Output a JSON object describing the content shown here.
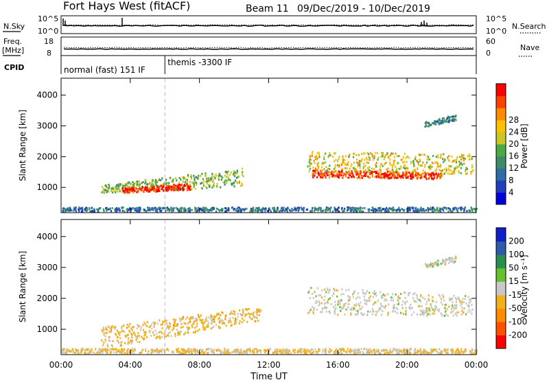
{
  "header": {
    "station": "Fort Hays West (fitACF)",
    "beam": "Beam 11",
    "date_range": "09/Dec/2019 - 10/Dec/2019"
  },
  "panel_labels": {
    "nsky": "N.Sky",
    "nsearch": "N.Search",
    "freq_line1": "Freq.",
    "freq_line2": "[MHz]",
    "nave": "Nave",
    "cpid": "CPID"
  },
  "noise_axis": {
    "top": "10^5",
    "bottom": "10^0"
  },
  "freq_axis": {
    "left_top": "18",
    "left_bottom": "8",
    "right_top": "60",
    "right_bottom": "0"
  },
  "cpid_modes": [
    {
      "label": "normal (fast) 151 IF",
      "start_hour": 0
    },
    {
      "label": "themis -3300 IF",
      "start_hour": 6
    }
  ],
  "x_axis": {
    "title": "Time UT",
    "ticks": [
      "00:00",
      "04:00",
      "08:00",
      "12:00",
      "16:00",
      "20:00",
      "00:00"
    ]
  },
  "y_axis": {
    "title": "Slant Range [km]",
    "ticks": [
      "1000",
      "2000",
      "3000",
      "4000"
    ]
  },
  "power_bar": {
    "title": "Power [dB]",
    "ticks": [
      "4",
      "8",
      "12",
      "16",
      "20",
      "24",
      "28"
    ],
    "colors": [
      "#0000dd",
      "#1f3fbf",
      "#2e6ea6",
      "#3c8c6a",
      "#4aaa45",
      "#c9c628",
      "#ffc000",
      "#ff8c00",
      "#ff4000",
      "#ff0000"
    ]
  },
  "velocity_bar": {
    "title": "Velocity [m s⁻¹]",
    "ticks": [
      "200",
      "100",
      "50",
      "15",
      "-15",
      "-50",
      "-100",
      "-200"
    ],
    "colors": [
      "#1020c8",
      "#2e5aa8",
      "#2a8e50",
      "#66c030",
      "#c8c8c8",
      "#f0b020",
      "#ff8c00",
      "#ff5000",
      "#ff0000"
    ]
  },
  "chart_data": [
    {
      "type": "heatmap",
      "title": "Power [dB]",
      "xlabel": "Time UT",
      "ylabel": "Slant Range [km]",
      "xlim": [
        0,
        24
      ],
      "ylim": [
        180,
        4550
      ],
      "colorbar_range": [
        0,
        30
      ],
      "bands": [
        {
          "t_start": 2.3,
          "t_end": 10.5,
          "range_low_start": 850,
          "range_low_end": 1050,
          "range_high_start": 1100,
          "range_high_end": 1650,
          "power": 14
        },
        {
          "t_start": 3.5,
          "t_end": 7.5,
          "range_low_start": 850,
          "range_low_end": 950,
          "range_high_start": 1000,
          "range_high_end": 1150,
          "power": 27
        },
        {
          "t_start": 14.2,
          "t_end": 23.8,
          "range_low_start": 1500,
          "range_low_end": 1450,
          "range_high_start": 2200,
          "range_high_end": 2100,
          "power": 18
        },
        {
          "t_start": 14.5,
          "t_end": 22,
          "range_low_start": 1350,
          "range_low_end": 1300,
          "range_high_start": 1600,
          "range_high_end": 1500,
          "power": 26
        },
        {
          "t_start": 0,
          "t_end": 24,
          "range_low_start": 180,
          "range_low_end": 180,
          "range_high_start": 380,
          "range_high_end": 380,
          "power": 8
        },
        {
          "t_start": 21,
          "t_end": 22.8,
          "range_low_start": 3000,
          "range_low_end": 3200,
          "range_high_start": 3150,
          "range_high_end": 3400,
          "power": 10
        }
      ]
    },
    {
      "type": "heatmap",
      "title": "Velocity [m s⁻¹]",
      "xlabel": "Time UT",
      "ylabel": "Slant Range [km]",
      "xlim": [
        0,
        24
      ],
      "ylim": [
        180,
        4550
      ],
      "colorbar_range": [
        -200,
        200
      ],
      "bands": [
        {
          "t_start": 2.3,
          "t_end": 11.5,
          "range_low_start": 400,
          "range_low_end": 1300,
          "range_high_start": 1100,
          "range_high_end": 1750,
          "velocity": -40
        },
        {
          "t_start": 14.2,
          "t_end": 23.8,
          "range_low_start": 1500,
          "range_low_end": 1450,
          "range_high_start": 2400,
          "range_high_end": 2100,
          "velocity": 0
        },
        {
          "t_start": 0,
          "t_end": 24,
          "range_low_start": 180,
          "range_low_end": 180,
          "range_high_start": 400,
          "range_high_end": 400,
          "velocity": -30
        },
        {
          "t_start": 21,
          "t_end": 22.8,
          "range_low_start": 3000,
          "range_low_end": 3200,
          "range_high_start": 3150,
          "range_high_end": 3400,
          "velocity": 0
        }
      ]
    }
  ]
}
